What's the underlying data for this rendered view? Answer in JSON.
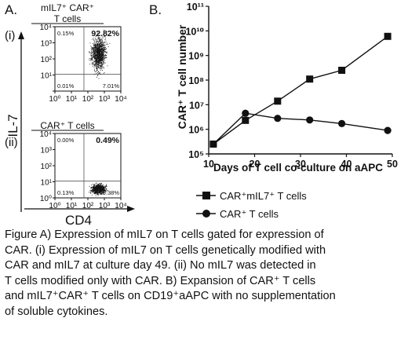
{
  "panel_a": {
    "label": "A.",
    "y_axis_label": "IL-7",
    "x_axis_label": "CD4",
    "tick_labels": [
      "10⁰",
      "10¹",
      "10²",
      "10³",
      "10⁴"
    ],
    "plots": [
      {
        "roman": "(i)",
        "title_lines": [
          "mIL7⁺ CAR⁺",
          "T cells"
        ],
        "quadrants": {
          "upper_left": "0.15%",
          "upper_right": "92.82%",
          "lower_left": "0.01%",
          "lower_right": "7.01%"
        },
        "population": "upper"
      },
      {
        "roman": "(ii)",
        "title_lines": [
          "CAR⁺ T cells"
        ],
        "quadrants": {
          "upper_left": "0.00%",
          "upper_right": "0.49%",
          "lower_left": "0.13%",
          "lower_right": "99.38%"
        },
        "population": "lower"
      }
    ]
  },
  "chart_data": {
    "type": "line",
    "panel_label": "B.",
    "ylabel": "CAR⁺ T cell number",
    "xlabel": "Days of T cell co-culture on aAPC",
    "xlim": [
      10,
      50
    ],
    "x_ticks": [
      10,
      20,
      30,
      40,
      50
    ],
    "ylim": [
      100000,
      100000000000
    ],
    "y_scale": "log",
    "y_tick_labels": [
      "10⁵",
      "10⁶",
      "10⁷",
      "10⁸",
      "10⁹",
      "10¹⁰",
      "10¹¹"
    ],
    "legend_placement": "bottom",
    "series": [
      {
        "name": "CAR⁺mIL7⁺ T cells",
        "marker": "square",
        "x": [
          11,
          18,
          25,
          32,
          39,
          49
        ],
        "y": [
          250000,
          2300000,
          14000000,
          110000000,
          250000000,
          6000000000
        ]
      },
      {
        "name": "CAR⁺ T cells",
        "marker": "circle",
        "x": [
          11,
          18,
          25,
          32,
          39,
          49
        ],
        "y": [
          250000,
          4500000,
          2800000,
          2400000,
          1700000,
          900000
        ]
      }
    ]
  },
  "caption": [
    "Figure  A)  Expression of mIL7 on T cells  gated for expression of",
    "CAR.   (i) Expression of mIL7 on T cells  genetically modified with",
    "CAR  and  mIL7 at culture  day 49.  (ii) No  mIL7 was  detected in",
    "T cells modified  only  with CAR.   B)  Expansion of  CAR⁺ T cells",
    "and mIL7⁺CAR⁺ T cells on CD19⁺aAPC with no supplementation",
    "of soluble cytokines."
  ]
}
